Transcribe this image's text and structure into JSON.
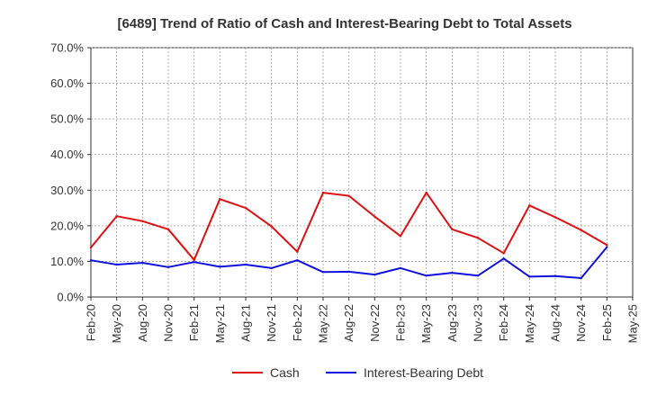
{
  "chart_data": {
    "type": "line",
    "title": "[6489]  Trend of Ratio of Cash and Interest-Bearing Debt to Total Assets",
    "xlabel": "",
    "ylabel": "",
    "categories": [
      "Feb-20",
      "May-20",
      "Aug-20",
      "Nov-20",
      "Feb-21",
      "May-21",
      "Aug-21",
      "Nov-21",
      "Feb-22",
      "May-22",
      "Aug-22",
      "Nov-22",
      "Feb-23",
      "May-23",
      "Aug-23",
      "Nov-23",
      "Feb-24",
      "May-24",
      "Aug-24",
      "Nov-24",
      "Feb-25",
      "May-25"
    ],
    "ylim": [
      0,
      70
    ],
    "yticks": [
      0,
      10,
      20,
      30,
      40,
      50,
      60,
      70
    ],
    "ytick_labels": [
      "0.0%",
      "10.0%",
      "20.0%",
      "30.0%",
      "40.0%",
      "50.0%",
      "60.0%",
      "70.0%"
    ],
    "grid": true,
    "legend_position": "bottom",
    "series": [
      {
        "name": "Cash",
        "color": "#dd1111",
        "values": [
          13.9,
          22.7,
          21.3,
          19.0,
          10.4,
          27.5,
          25.0,
          19.8,
          12.7,
          29.3,
          28.4,
          22.6,
          17.1,
          29.3,
          19.0,
          16.6,
          12.3,
          25.7,
          22.4,
          18.8,
          14.6,
          null
        ]
      },
      {
        "name": "Interest-Bearing Debt",
        "color": "#1111dd",
        "values": [
          10.3,
          9.1,
          9.6,
          8.4,
          9.8,
          8.5,
          9.1,
          8.1,
          10.3,
          7.0,
          7.1,
          6.3,
          8.1,
          6.0,
          6.8,
          6.0,
          10.8,
          5.7,
          5.9,
          5.3,
          14.0,
          null
        ]
      }
    ]
  }
}
